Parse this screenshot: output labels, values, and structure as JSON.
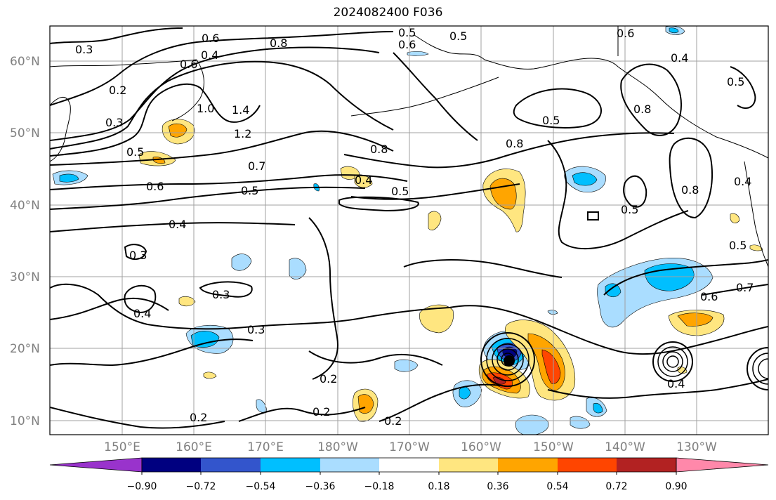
{
  "title": "2024082400 F036",
  "latitude_labels": [
    "60°N",
    "50°N",
    "40°N",
    "30°N",
    "20°N",
    "10°N"
  ],
  "longitude_labels": [
    "150°E",
    "160°E",
    "170°E",
    "180°W",
    "170°W",
    "160°W",
    "150°W",
    "140°W",
    "130°W"
  ],
  "colorbar": {
    "tick_labels": [
      "−0.90",
      "−0.72",
      "−0.54",
      "−0.36",
      "−0.18",
      "0.18",
      "0.36",
      "0.54",
      "0.72",
      "0.90"
    ],
    "colors": [
      "#9933cc",
      "#000080",
      "#3355cc",
      "#00bfff",
      "#aaddff",
      "#ffffff",
      "#ffe680",
      "#ffa500",
      "#ff4500",
      "#b22222",
      "#ff88aa"
    ]
  },
  "contour_labels": [
    "0.3",
    "0.2",
    "0.3",
    "0.5",
    "0.6",
    "0.4",
    "0.6",
    "0.8",
    "1.0",
    "1.4",
    "1.2",
    "0.7",
    "0.6",
    "0.5",
    "0.4",
    "0.8",
    "0.5",
    "0.5",
    "0.6",
    "0.5",
    "0.8",
    "0.8",
    "0.5",
    "0.5",
    "0.6",
    "0.4",
    "0.8",
    "0.4",
    "0.5",
    "0.5",
    "0.4",
    "0.3",
    "0.3",
    "0.4",
    "0.3",
    "0.2",
    "0.2",
    "0.2",
    "0.2",
    "0.6",
    "0.7",
    "0.4"
  ],
  "colors": {
    "frame": "#000000",
    "grid": "#a0a0a0",
    "axis_labels": "#808080"
  }
}
